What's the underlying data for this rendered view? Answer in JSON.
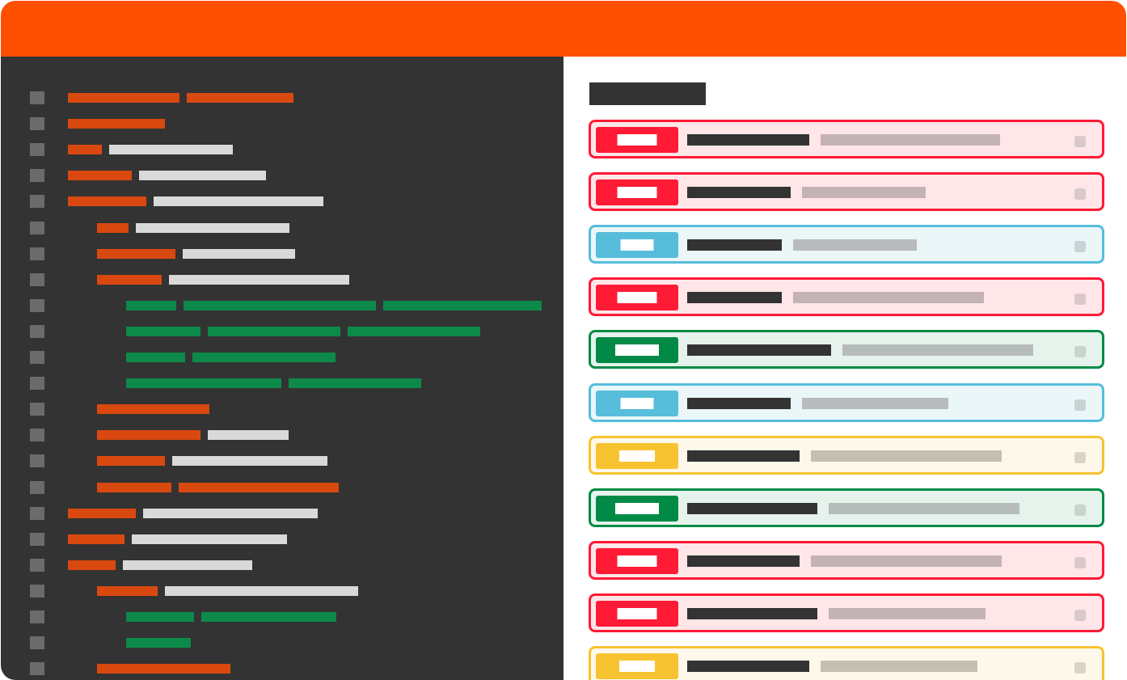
{
  "window": {
    "title": ""
  },
  "colors": {
    "title_bar": "#ff5000",
    "editor_bg": "#333333",
    "gutter_marker": "#6b6b6b",
    "token_keyword": "#d9490f",
    "token_text": "#d9d9d9",
    "token_green": "#0d8a4a",
    "heading": "#333333"
  },
  "editor": {
    "lines": [
      {
        "indent": 0,
        "tokens": [
          {
            "kind": "orange",
            "len": 138
          },
          {
            "kind": "orange",
            "len": 132
          }
        ]
      },
      {
        "indent": 0,
        "tokens": [
          {
            "kind": "orange",
            "len": 120
          }
        ]
      },
      {
        "indent": 0,
        "tokens": [
          {
            "kind": "orange",
            "len": 42
          },
          {
            "kind": "light",
            "len": 153
          }
        ]
      },
      {
        "indent": 0,
        "tokens": [
          {
            "kind": "orange",
            "len": 79
          },
          {
            "kind": "light",
            "len": 157
          }
        ]
      },
      {
        "indent": 0,
        "tokens": [
          {
            "kind": "orange",
            "len": 97
          },
          {
            "kind": "light",
            "len": 210
          }
        ]
      },
      {
        "indent": 1,
        "tokens": [
          {
            "kind": "orange",
            "len": 39
          },
          {
            "kind": "light",
            "len": 190
          }
        ]
      },
      {
        "indent": 1,
        "tokens": [
          {
            "kind": "orange",
            "len": 97
          },
          {
            "kind": "light",
            "len": 139
          }
        ]
      },
      {
        "indent": 1,
        "tokens": [
          {
            "kind": "orange",
            "len": 80
          },
          {
            "kind": "light",
            "len": 223
          }
        ]
      },
      {
        "indent": 2,
        "tokens": [
          {
            "kind": "green",
            "len": 62
          },
          {
            "kind": "green",
            "len": 238
          },
          {
            "kind": "green",
            "len": 196
          }
        ]
      },
      {
        "indent": 2,
        "tokens": [
          {
            "kind": "green",
            "len": 92
          },
          {
            "kind": "green",
            "len": 164
          },
          {
            "kind": "green",
            "len": 164
          }
        ]
      },
      {
        "indent": 2,
        "tokens": [
          {
            "kind": "green",
            "len": 73
          },
          {
            "kind": "green",
            "len": 177
          }
        ]
      },
      {
        "indent": 2,
        "tokens": [
          {
            "kind": "green",
            "len": 192
          },
          {
            "kind": "green",
            "len": 164
          }
        ]
      },
      {
        "indent": 1,
        "tokens": [
          {
            "kind": "orange",
            "len": 139
          }
        ]
      },
      {
        "indent": 1,
        "tokens": [
          {
            "kind": "orange",
            "len": 128
          },
          {
            "kind": "light",
            "len": 100
          }
        ]
      },
      {
        "indent": 1,
        "tokens": [
          {
            "kind": "orange",
            "len": 84
          },
          {
            "kind": "light",
            "len": 192
          }
        ]
      },
      {
        "indent": 1,
        "tokens": [
          {
            "kind": "orange",
            "len": 92
          },
          {
            "kind": "orange",
            "len": 198
          }
        ]
      },
      {
        "indent": 0,
        "tokens": [
          {
            "kind": "orange",
            "len": 84
          },
          {
            "kind": "light",
            "len": 216
          }
        ]
      },
      {
        "indent": 0,
        "tokens": [
          {
            "kind": "orange",
            "len": 70
          },
          {
            "kind": "light",
            "len": 192
          }
        ]
      },
      {
        "indent": 0,
        "tokens": [
          {
            "kind": "orange",
            "len": 59
          },
          {
            "kind": "light",
            "len": 160
          }
        ]
      },
      {
        "indent": 1,
        "tokens": [
          {
            "kind": "orange",
            "len": 75
          },
          {
            "kind": "light",
            "len": 239
          }
        ]
      },
      {
        "indent": 2,
        "tokens": [
          {
            "kind": "green",
            "len": 84
          },
          {
            "kind": "green",
            "len": 167
          }
        ]
      },
      {
        "indent": 2,
        "tokens": [
          {
            "kind": "green",
            "len": 80
          }
        ]
      },
      {
        "indent": 1,
        "tokens": [
          {
            "kind": "orange",
            "len": 165
          }
        ]
      }
    ]
  },
  "panel": {
    "heading": "",
    "items": [
      {
        "status": "red",
        "badge": "",
        "title": "",
        "subtitle": "",
        "title_len": 151,
        "subtitle_len": 222
      },
      {
        "status": "red",
        "badge": "",
        "title": "",
        "subtitle": "",
        "title_len": 128,
        "subtitle_len": 153
      },
      {
        "status": "blue",
        "badge": "",
        "title": "",
        "subtitle": "",
        "title_len": 117,
        "subtitle_len": 153
      },
      {
        "status": "red",
        "badge": "",
        "title": "",
        "subtitle": "",
        "title_len": 117,
        "subtitle_len": 236
      },
      {
        "status": "green",
        "badge": "",
        "title": "",
        "subtitle": "",
        "title_len": 178,
        "subtitle_len": 236
      },
      {
        "status": "blue",
        "badge": "",
        "title": "",
        "subtitle": "",
        "title_len": 128,
        "subtitle_len": 181
      },
      {
        "status": "yellow",
        "badge": "",
        "title": "",
        "subtitle": "",
        "title_len": 139,
        "subtitle_len": 236
      },
      {
        "status": "green",
        "badge": "",
        "title": "",
        "subtitle": "",
        "title_len": 161,
        "subtitle_len": 236
      },
      {
        "status": "red",
        "badge": "",
        "title": "",
        "subtitle": "",
        "title_len": 139,
        "subtitle_len": 236
      },
      {
        "status": "red",
        "badge": "",
        "title": "",
        "subtitle": "",
        "title_len": 161,
        "subtitle_len": 194
      },
      {
        "status": "yellow",
        "badge": "",
        "title": "",
        "subtitle": "",
        "title_len": 151,
        "subtitle_len": 194
      }
    ]
  },
  "status_colors": {
    "red": {
      "accent": "#ff1a36",
      "background": "#ffe6e8",
      "subtitle": "#c3b3b5",
      "checkbox": "#d9c9cb"
    },
    "blue": {
      "accent": "#56bddb",
      "background": "#eaf6f8",
      "subtitle": "#b8bcbd",
      "checkbox": "#c9d2d4"
    },
    "green": {
      "accent": "#008a45",
      "background": "#e6f3ec",
      "subtitle": "#b6bcb9",
      "checkbox": "#c8d4ce"
    },
    "yellow": {
      "accent": "#f7c331",
      "background": "#fef8ea",
      "subtitle": "#c5bfb3",
      "checkbox": "#d9d4c6"
    }
  }
}
